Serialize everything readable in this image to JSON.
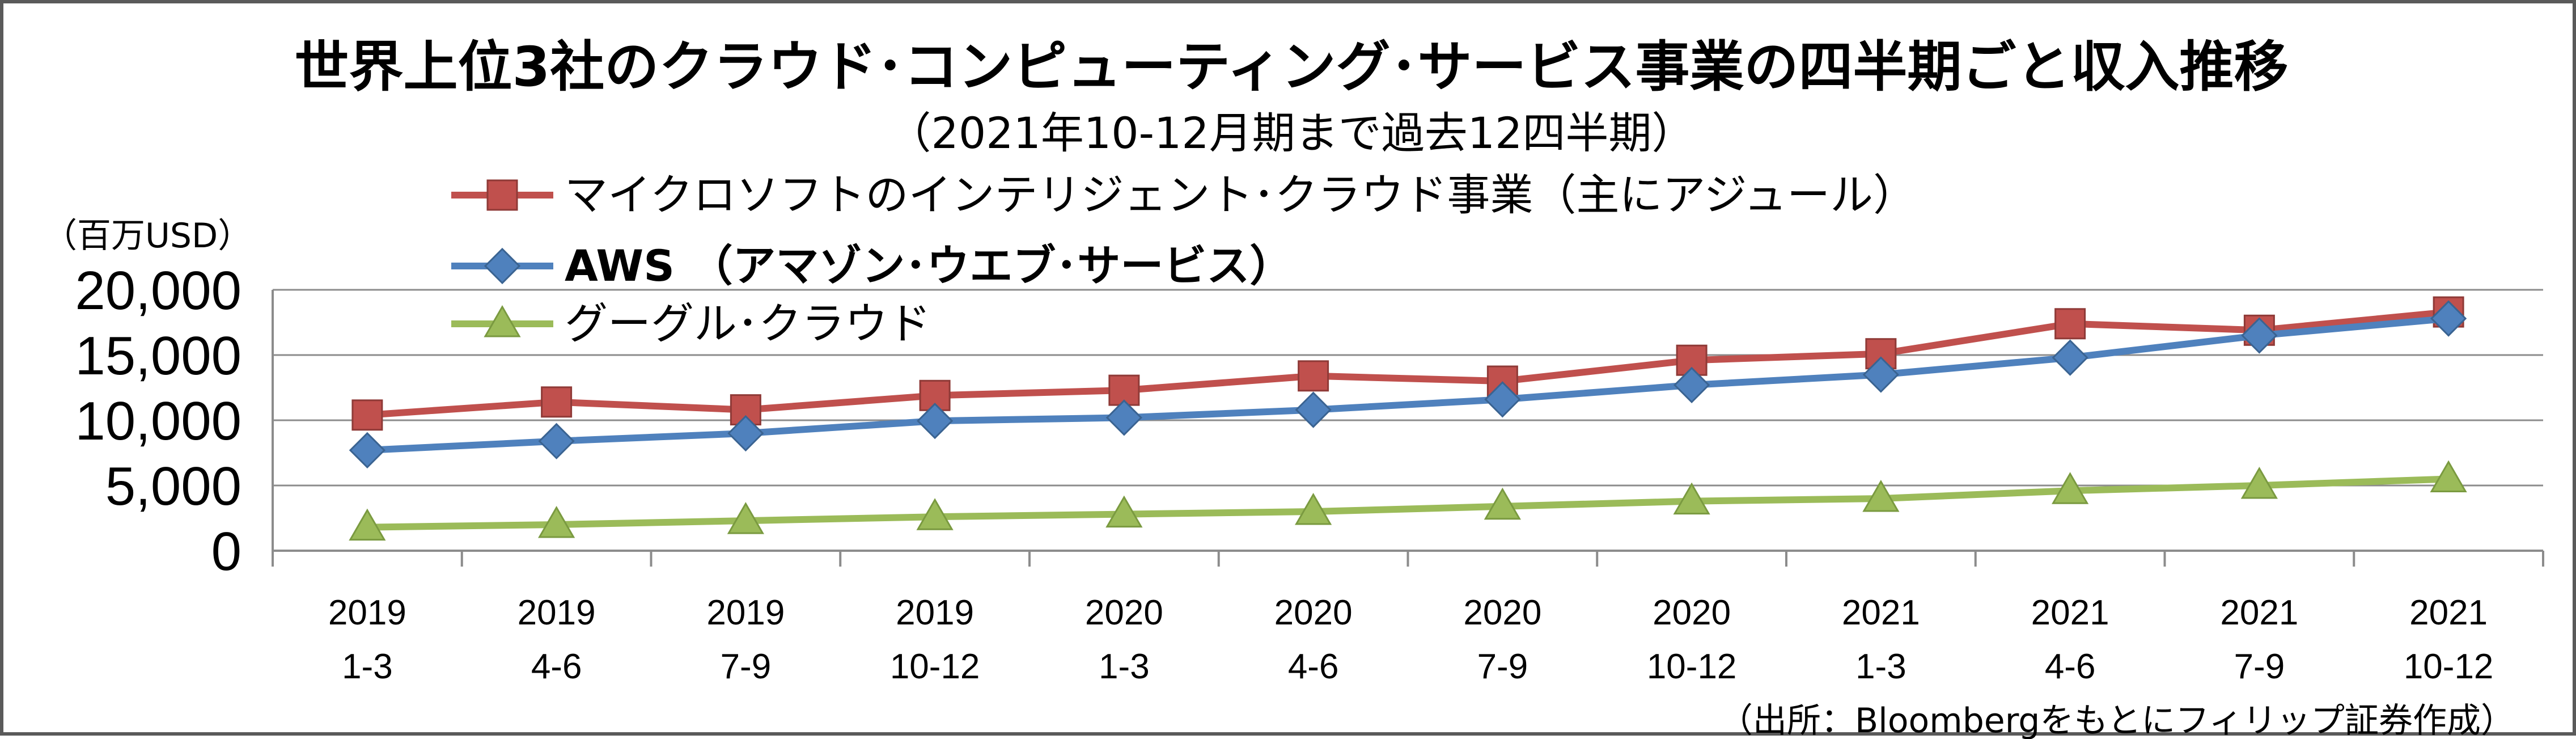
{
  "chart_data": {
    "type": "line",
    "title": "世界上位3社のクラウド･コンピューティング･サービス事業の四半期ごと収入推移",
    "subtitle": "（2021年10-12月期まで過去12四半期）",
    "ylabel": "（百万USD）",
    "source": "（出所：Bloombergをもとにフィリップ証券作成）",
    "ylim": [
      0,
      20000
    ],
    "yticks": [
      0,
      5000,
      10000,
      15000,
      20000
    ],
    "ytick_labels": [
      "0",
      "5,000",
      "10,000",
      "15,000",
      "20,000"
    ],
    "grid": true,
    "legend_position": "top-left",
    "categories": [
      [
        "2019",
        "1-3"
      ],
      [
        "2019",
        "4-6"
      ],
      [
        "2019",
        "7-9"
      ],
      [
        "2019",
        "10-12"
      ],
      [
        "2020",
        "1-3"
      ],
      [
        "2020",
        "4-6"
      ],
      [
        "2020",
        "7-9"
      ],
      [
        "2020",
        "10-12"
      ],
      [
        "2021",
        "1-3"
      ],
      [
        "2021",
        "4-6"
      ],
      [
        "2021",
        "7-9"
      ],
      [
        "2021",
        "10-12"
      ]
    ],
    "series": [
      {
        "name": "マイクロソフトのインテリジェント･クラウド事業（主にアジュール）",
        "color": "#c0504d",
        "marker": "square",
        "values": [
          10400,
          11400,
          10800,
          11900,
          12300,
          13400,
          13000,
          14600,
          15100,
          17400,
          16900,
          18300
        ]
      },
      {
        "name": "AWS （アマゾン･ウエブ･サービス）",
        "color": "#4f81bd",
        "marker": "diamond",
        "values": [
          7700,
          8400,
          9000,
          9950,
          10200,
          10800,
          11600,
          12700,
          13500,
          14800,
          16500,
          17800
        ]
      },
      {
        "name": "グーグル･クラウド",
        "color": "#9bbb59",
        "marker": "triangle",
        "values": [
          1800,
          2000,
          2300,
          2600,
          2800,
          3000,
          3400,
          3800,
          4000,
          4600,
          5000,
          5500
        ]
      }
    ]
  }
}
